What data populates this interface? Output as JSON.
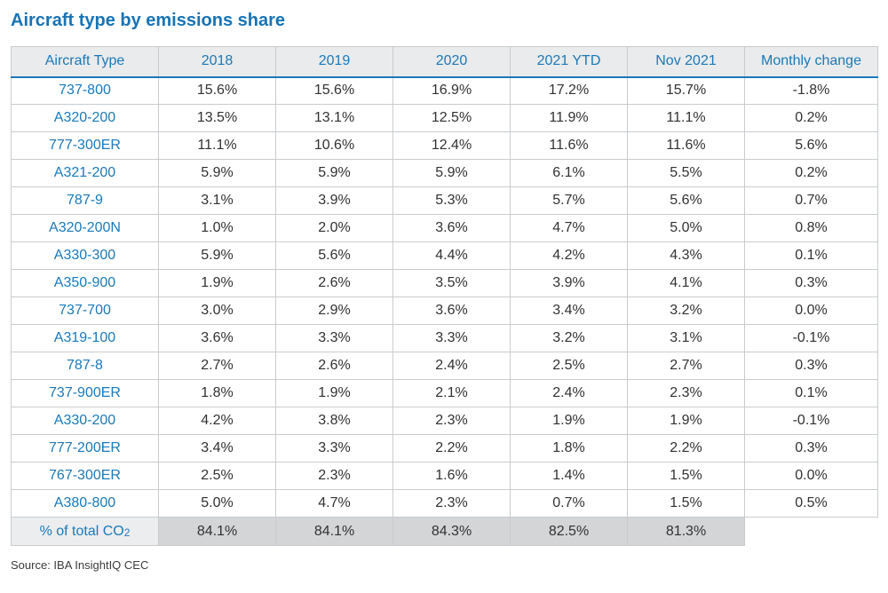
{
  "chart_data": {
    "type": "table",
    "title": "Aircraft type by emissions share",
    "units": "%",
    "columns": [
      "Aircraft Type",
      "2018",
      "2019",
      "2020",
      "2021 YTD",
      "Nov 2021",
      "Monthly change"
    ],
    "rows": [
      {
        "type": "737-800",
        "values": [
          "15.6%",
          "15.6%",
          "16.9%",
          "17.2%",
          "15.7%",
          "-1.8%"
        ]
      },
      {
        "type": "A320-200",
        "values": [
          "13.5%",
          "13.1%",
          "12.5%",
          "11.9%",
          "11.1%",
          "0.2%"
        ]
      },
      {
        "type": "777-300ER",
        "values": [
          "11.1%",
          "10.6%",
          "12.4%",
          "11.6%",
          "11.6%",
          "5.6%"
        ]
      },
      {
        "type": "A321-200",
        "values": [
          "5.9%",
          "5.9%",
          "5.9%",
          "6.1%",
          "5.5%",
          "0.2%"
        ]
      },
      {
        "type": "787-9",
        "values": [
          "3.1%",
          "3.9%",
          "5.3%",
          "5.7%",
          "5.6%",
          "0.7%"
        ]
      },
      {
        "type": "A320-200N",
        "values": [
          "1.0%",
          "2.0%",
          "3.6%",
          "4.7%",
          "5.0%",
          "0.8%"
        ]
      },
      {
        "type": "A330-300",
        "values": [
          "5.9%",
          "5.6%",
          "4.4%",
          "4.2%",
          "4.3%",
          "0.1%"
        ]
      },
      {
        "type": "A350-900",
        "values": [
          "1.9%",
          "2.6%",
          "3.5%",
          "3.9%",
          "4.1%",
          "0.3%"
        ]
      },
      {
        "type": "737-700",
        "values": [
          "3.0%",
          "2.9%",
          "3.6%",
          "3.4%",
          "3.2%",
          "0.0%"
        ]
      },
      {
        "type": "A319-100",
        "values": [
          "3.6%",
          "3.3%",
          "3.3%",
          "3.2%",
          "3.1%",
          "-0.1%"
        ]
      },
      {
        "type": "787-8",
        "values": [
          "2.7%",
          "2.6%",
          "2.4%",
          "2.5%",
          "2.7%",
          "0.3%"
        ]
      },
      {
        "type": "737-900ER",
        "values": [
          "1.8%",
          "1.9%",
          "2.1%",
          "2.4%",
          "2.3%",
          "0.1%"
        ]
      },
      {
        "type": "A330-200",
        "values": [
          "4.2%",
          "3.8%",
          "2.3%",
          "1.9%",
          "1.9%",
          "-0.1%"
        ]
      },
      {
        "type": "777-200ER",
        "values": [
          "3.4%",
          "3.3%",
          "2.2%",
          "1.8%",
          "2.2%",
          "0.3%"
        ]
      },
      {
        "type": "767-300ER",
        "values": [
          "2.5%",
          "2.3%",
          "1.6%",
          "1.4%",
          "1.5%",
          "0.0%"
        ]
      },
      {
        "type": "A380-800",
        "values": [
          "5.0%",
          "4.7%",
          "2.3%",
          "0.7%",
          "1.5%",
          "0.5%"
        ]
      }
    ],
    "footer": {
      "label_main": "% of total CO",
      "label_sub": "2",
      "values": [
        "84.1%",
        "84.1%",
        "84.3%",
        "82.5%",
        "81.3%"
      ]
    },
    "source": "Source: IBA InsightIQ CEC",
    "colors": {
      "accent_blue": "#1b79b8",
      "title_blue": "#1873b5",
      "header_bg": "#e9ebec",
      "footer_label_bg": "#ecedee",
      "footer_value_bg": "#d3d5d7",
      "grid_border": "#c9cccf",
      "value_text": "#323234"
    },
    "layout": {
      "grid": "on",
      "legend": "none"
    }
  }
}
